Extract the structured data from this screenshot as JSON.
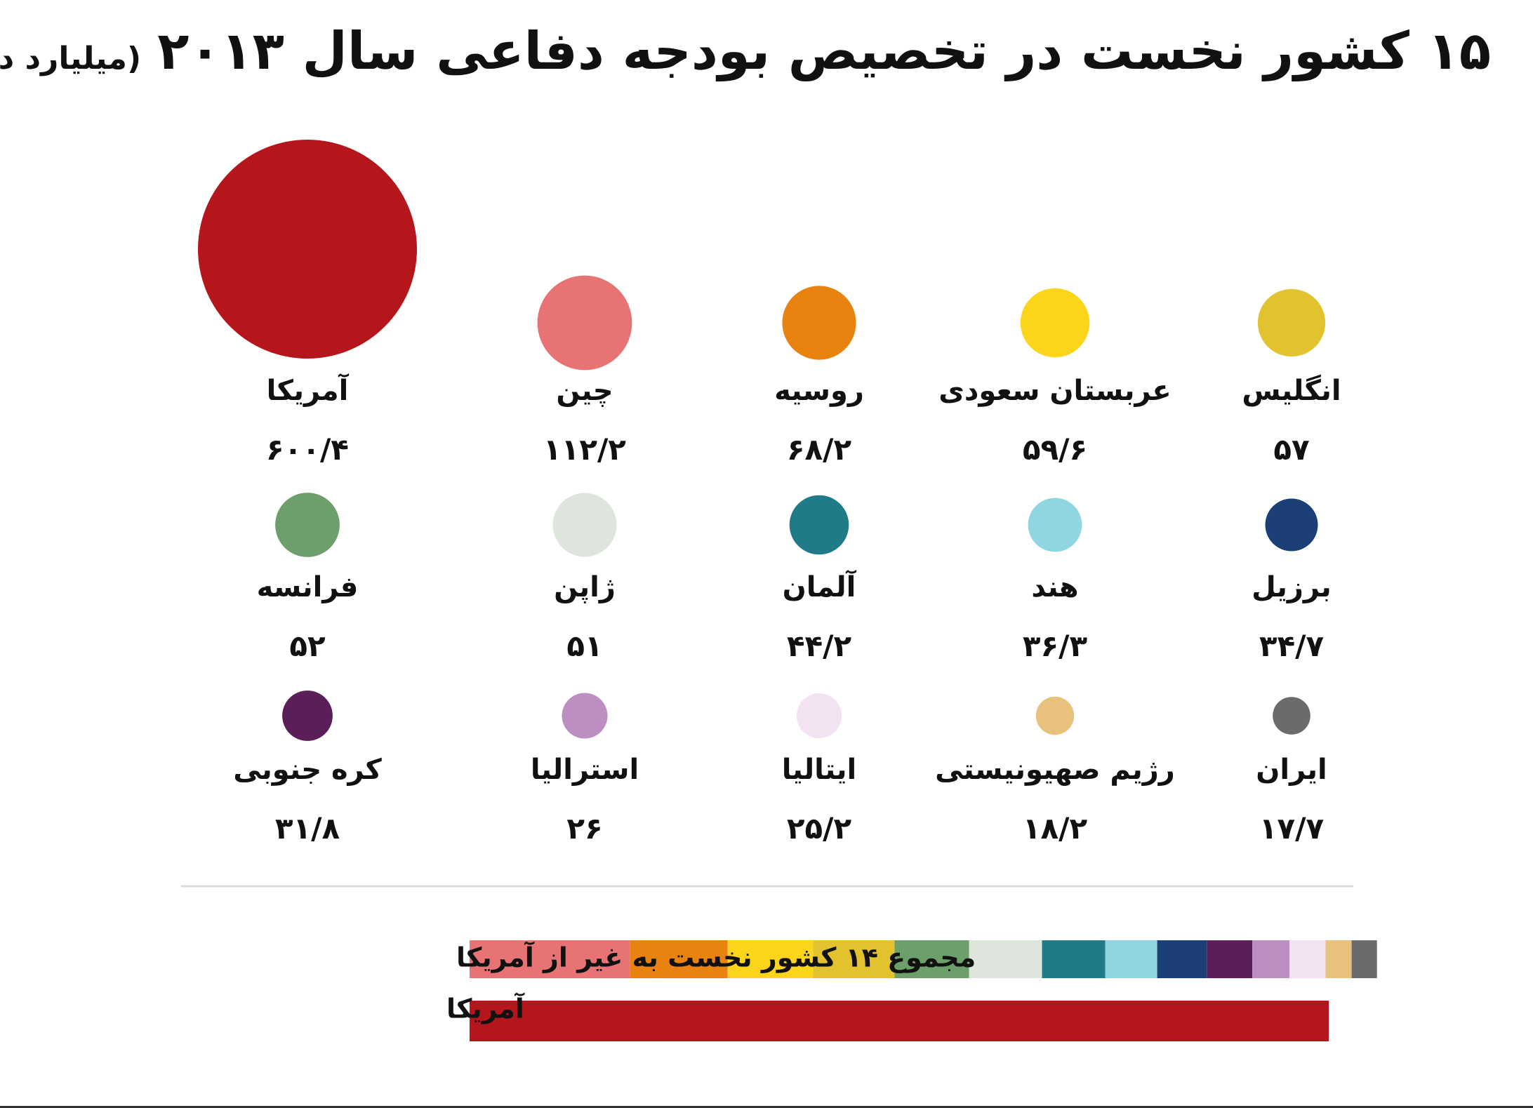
{
  "title": "۱۵ کشور نخست در تخصیص بودجه دفاعی سال ۲۰۱۳",
  "subtitle": "(میلیارد دلار)",
  "chart_data": {
    "type": "bubble",
    "title": "۱۵ کشور نخست در تخصیص بودجه دفاعی سال ۲۰۱۳",
    "subtitle": "(میلیارد دلار)",
    "series": [
      {
        "label": "آمریکا",
        "value": 600.4,
        "value_label": "۶۰۰/۴",
        "color": "#b5161b"
      },
      {
        "label": "چین",
        "value": 112.2,
        "value_label": "۱۱۲/۲",
        "color": "#e87375"
      },
      {
        "label": "روسیه",
        "value": 68.2,
        "value_label": "۶۸/۲",
        "color": "#e88310"
      },
      {
        "label": "عربستان سعودی",
        "value": 59.6,
        "value_label": "۵۹/۶",
        "color": "#fcd41a"
      },
      {
        "label": "انگلیس",
        "value": 57,
        "value_label": "۵۷",
        "color": "#e3c22f"
      },
      {
        "label": "فرانسه",
        "value": 52,
        "value_label": "۵۲",
        "color": "#6c9f6a"
      },
      {
        "label": "ژاپن",
        "value": 51,
        "value_label": "۵۱",
        "color": "#dde5dc"
      },
      {
        "label": "آلمان",
        "value": 44.2,
        "value_label": "۴۴/۲",
        "color": "#217a87"
      },
      {
        "label": "هند",
        "value": 36.3,
        "value_label": "۳۶/۳",
        "color": "#90d6e2"
      },
      {
        "label": "برزیل",
        "value": 34.7,
        "value_label": "۳۴/۷",
        "color": "#1b3f76"
      },
      {
        "label": "کره جنوبی",
        "value": 31.8,
        "value_label": "۳۱/۸",
        "color": "#5a1e59"
      },
      {
        "label": "استرالیا",
        "value": 26,
        "value_label": "۲۶",
        "color": "#bd8ec2"
      },
      {
        "label": "ایتالیا",
        "value": 25.2,
        "value_label": "۲۵/۲",
        "color": "#f3e2f1"
      },
      {
        "label": "رژیم صهیونیستی",
        "value": 18.2,
        "value_label": "۱۸/۲",
        "color": "#e8c17d"
      },
      {
        "label": "ایران",
        "value": 17.7,
        "value_label": "۱۷/۷",
        "color": "#6b6b6d"
      }
    ],
    "comparison_bars": [
      {
        "label": "مجموع ۱۴ کشور نخست به غیر از آمریکا",
        "composition": "others_stacked"
      },
      {
        "label": "آمریکا",
        "composition": "usa_only"
      }
    ]
  }
}
